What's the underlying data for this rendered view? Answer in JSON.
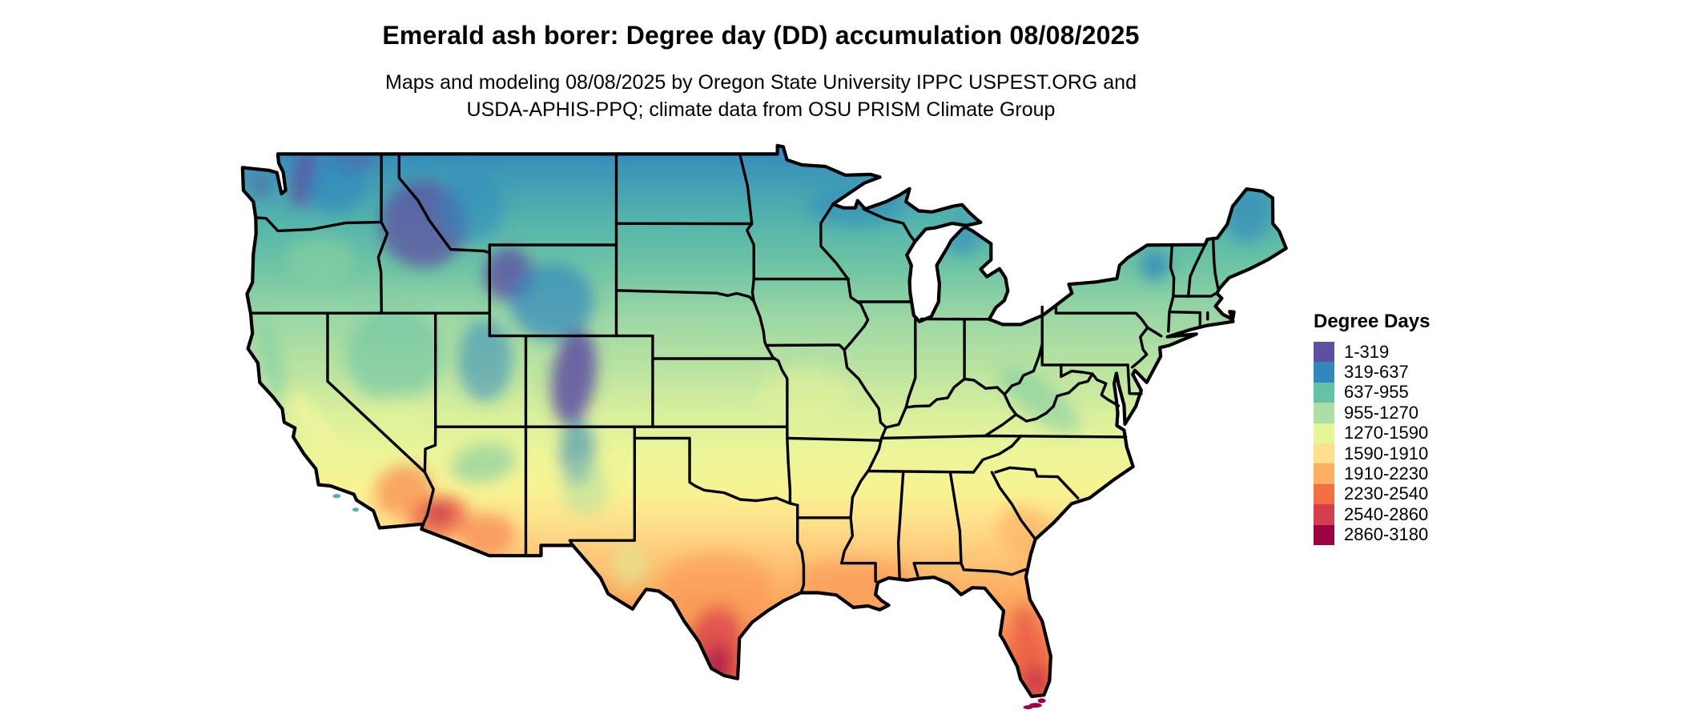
{
  "title": "Emerald ash borer: Degree day (DD) accumulation 08/08/2025",
  "subtitle_line1": "Maps and modeling 08/08/2025 by Oregon State University IPPC USPEST.ORG and",
  "subtitle_line2": "USDA-APHIS-PPQ; climate data from OSU PRISM Climate Group",
  "map": {
    "region": "Continental United States",
    "kind": "degree-day accumulation choropleth",
    "water_color": "#ffffff",
    "border_color": "#000000"
  },
  "legend": {
    "title": "Degree Days",
    "bins": [
      {
        "label": "1-319",
        "color": "#5e4fa2"
      },
      {
        "label": "319-637",
        "color": "#3288bd"
      },
      {
        "label": "637-955",
        "color": "#66c2a5"
      },
      {
        "label": "955-1270",
        "color": "#abdda4"
      },
      {
        "label": "1270-1590",
        "color": "#e6f598"
      },
      {
        "label": "1590-1910",
        "color": "#fee08b"
      },
      {
        "label": "1910-2230",
        "color": "#fdae61"
      },
      {
        "label": "2230-2540",
        "color": "#f46d43"
      },
      {
        "label": "2540-2860",
        "color": "#d53e4f"
      },
      {
        "label": "2860-3180",
        "color": "#9e0142"
      }
    ]
  }
}
